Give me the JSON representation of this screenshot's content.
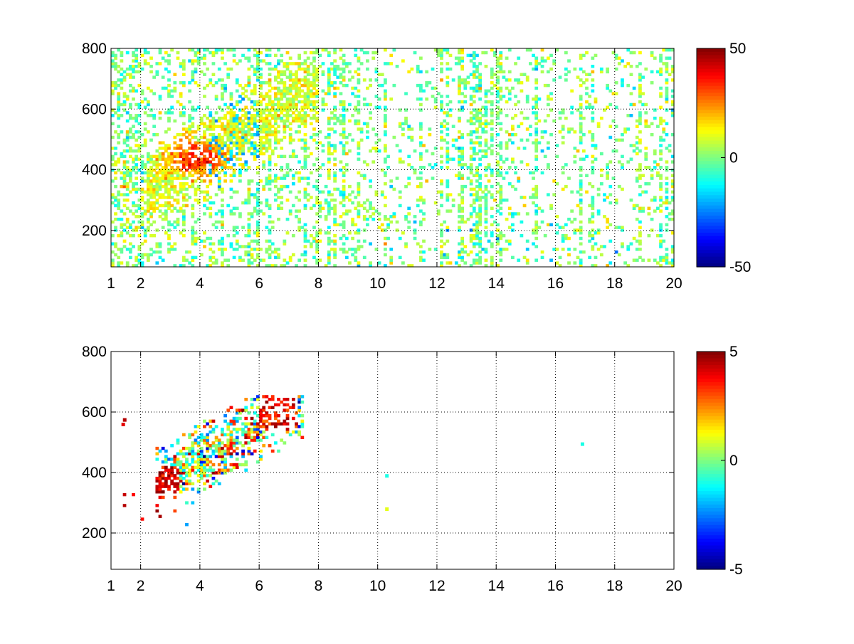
{
  "figure": {
    "background": "#ffffff",
    "colormap": "jet"
  },
  "chart_data": [
    {
      "type": "heatmap",
      "title": "",
      "xlabel": "",
      "ylabel": "",
      "xlim": [
        1,
        20
      ],
      "ylim": [
        80,
        800
      ],
      "xticks": [
        1,
        2,
        4,
        6,
        8,
        10,
        12,
        14,
        16,
        18,
        20
      ],
      "xtick_labels": [
        "1",
        "2",
        "4",
        "6",
        "8",
        "10",
        "12",
        "14",
        "16",
        "18",
        "20"
      ],
      "yticks": [
        200,
        400,
        600,
        800
      ],
      "ytick_labels": [
        "200",
        "400",
        "600",
        "800"
      ],
      "grid": true,
      "grid_style": "dotted",
      "colorbar": {
        "range": [
          -50,
          50
        ],
        "ticks": [
          50,
          0,
          -50
        ],
        "tick_labels": [
          "50",
          "0",
          "-50"
        ]
      },
      "data_description": "Sparse field; dense band rising from about (2.5, 350) to (6, 560), peak values near (3.5-4.5, 420-480) reaching about 30-40; scattered small values (-10 to 10) elsewhere, denser columns near x = 2, 3, 4, 10, 12, 15.5, 17, 19."
    },
    {
      "type": "heatmap",
      "title": "",
      "xlabel": "",
      "ylabel": "",
      "xlim": [
        1,
        20
      ],
      "ylim": [
        80,
        800
      ],
      "xticks": [
        1,
        2,
        4,
        6,
        8,
        10,
        12,
        14,
        16,
        18,
        20
      ],
      "xtick_labels": [
        "1",
        "2",
        "4",
        "6",
        "8",
        "10",
        "12",
        "14",
        "16",
        "18",
        "20"
      ],
      "yticks": [
        200,
        400,
        600,
        800
      ],
      "ytick_labels": [
        "200",
        "400",
        "600",
        "800"
      ],
      "grid": true,
      "grid_style": "dotted",
      "colorbar": {
        "range": [
          -5,
          5
        ],
        "ticks": [
          5,
          0,
          -5
        ],
        "tick_labels": [
          "5",
          "0",
          "-5"
        ]
      },
      "data_description": "Sparse values mostly between x = 2.5 and 7.5, y = 330 to 650; strong positive values (3-5) around (3, 380) and (6.5-7.2, 560-600); isolated points near (1.4, 560), (10.3, 390), (10.3, 280), (16.9, 495)."
    }
  ]
}
